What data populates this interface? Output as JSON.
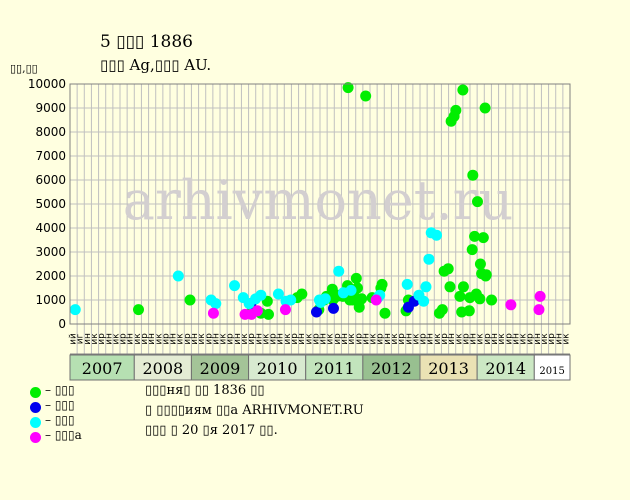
{
  "title": "5 ▯▯▯ 1886",
  "subtitle": "▯▯▯ Ag,▯▯▯ AU.",
  "y_unit": "▯▯,▯▯",
  "watermark": "arhivmonet.ru",
  "legend": [
    {
      "label": "– ▯▯▯",
      "color": "#00ee00"
    },
    {
      "label": "– ▯▯▯",
      "color": "#0000ee"
    },
    {
      "label": "– ▯▯▯",
      "color": "#00ffff"
    },
    {
      "label": "– ▯▯▯a",
      "color": "#ff00ff"
    }
  ],
  "notes": [
    "▯▯▯ня▯ ▯▯ 1836 ▯▯",
    "▯ ▯▯▯▯иям ▯▯а ARHIVMONET.RU",
    "▯▯▯ ▯ 20 ▯я 2017 ▯▯."
  ],
  "chart_data": {
    "type": "scatter",
    "title": "5 ▯▯▯ 1886",
    "ylabel": "▯▯,▯▯",
    "ylim": [
      0,
      10000
    ],
    "yticks": [
      0,
      1000,
      2000,
      3000,
      4000,
      5000,
      6000,
      7000,
      8000,
      9000,
      10000
    ],
    "grid": true,
    "legend_position": "bottom-left",
    "month_slots": 70,
    "month_labels": [
      "ий",
      "иг",
      "ин",
      "ик",
      "ир",
      "ин",
      "ик",
      "ир",
      "ин",
      "ик",
      "ир",
      "ин",
      "ик",
      "ир",
      "ин",
      "ик",
      "ир",
      "ин",
      "ик",
      "ир",
      "ин",
      "ик",
      "ир",
      "ин",
      "ик",
      "ир",
      "ин",
      "ик",
      "ир",
      "ин",
      "ик",
      "ир",
      "ин",
      "ик",
      "ир",
      "ин",
      "ик",
      "ир",
      "ин",
      "ик",
      "ир",
      "ин",
      "ик",
      "ир",
      "ин",
      "ик",
      "ир",
      "ин",
      "ик",
      "ир",
      "ин",
      "ик",
      "ир",
      "ин",
      "ик",
      "ир",
      "ин",
      "ик",
      "ир",
      "ин",
      "ик",
      "ир",
      "ин",
      "ик",
      "ир",
      "ин",
      "ик",
      "ир",
      "ин",
      "ик"
    ],
    "years": [
      {
        "label": "2007",
        "start": 0,
        "end": 9,
        "color": "#b6e0b2"
      },
      {
        "label": "2008",
        "start": 9,
        "end": 17,
        "color": "#e4ecd4"
      },
      {
        "label": "2009",
        "start": 17,
        "end": 25,
        "color": "#a4c498"
      },
      {
        "label": "2010",
        "start": 25,
        "end": 33,
        "color": "#d8ead0"
      },
      {
        "label": "2011",
        "start": 33,
        "end": 41,
        "color": "#c2e4bc"
      },
      {
        "label": "2012",
        "start": 41,
        "end": 49,
        "color": "#98c090"
      },
      {
        "label": "2013",
        "start": 49,
        "end": 57,
        "color": "#eae2b4"
      },
      {
        "label": "2014",
        "start": 57,
        "end": 65,
        "color": "#cce8c4"
      },
      {
        "label": "2015",
        "start": 65,
        "end": 70,
        "color": "#ffffff"
      }
    ],
    "series": [
      {
        "color": "#00ee00",
        "points": [
          [
            11.7,
            600
          ],
          [
            20.5,
            1000
          ],
          [
            31.1,
            550
          ],
          [
            32.6,
            450
          ],
          [
            33.7,
            950
          ],
          [
            33.9,
            400
          ],
          [
            38.8,
            1100
          ],
          [
            39.6,
            1250
          ],
          [
            42.5,
            600
          ],
          [
            43.4,
            1000
          ],
          [
            43.8,
            1150
          ],
          [
            44.8,
            1450
          ],
          [
            44.9,
            1000
          ],
          [
            45.6,
            1150
          ],
          [
            45.7,
            1200
          ],
          [
            46.6,
            1150
          ],
          [
            47.2,
            1350
          ],
          [
            47.4,
            1600
          ],
          [
            47.5,
            9850
          ],
          [
            47.7,
            1500
          ],
          [
            47.8,
            1000
          ],
          [
            47.9,
            1250
          ],
          [
            48.3,
            1000
          ],
          [
            48.5,
            1350
          ],
          [
            48.9,
            1900
          ],
          [
            49.1,
            1500
          ],
          [
            49.4,
            700
          ],
          [
            49.8,
            1050
          ],
          [
            50.5,
            9500
          ],
          [
            51.6,
            1100
          ],
          [
            53.1,
            1500
          ],
          [
            53.3,
            1650
          ],
          [
            53.8,
            450
          ],
          [
            57.4,
            550
          ],
          [
            57.8,
            1000
          ],
          [
            63.1,
            450
          ],
          [
            63.6,
            600
          ],
          [
            63.9,
            2200
          ],
          [
            64.6,
            2300
          ],
          [
            64.9,
            1550
          ],
          [
            65.1,
            8450
          ],
          [
            65.6,
            8650
          ],
          [
            65.9,
            8900
          ],
          [
            66.6,
            1150
          ],
          [
            66.9,
            500
          ],
          [
            67.1,
            9750
          ],
          [
            67.2,
            1550
          ],
          [
            68.2,
            550
          ],
          [
            68.3,
            1100
          ],
          [
            68.7,
            3100
          ],
          [
            68.8,
            6200
          ],
          [
            69.1,
            3650
          ],
          [
            69.4,
            1250
          ],
          [
            69.6,
            5100
          ],
          [
            70.0,
            1050
          ],
          [
            70.1,
            2500
          ],
          [
            70.3,
            2100
          ],
          [
            70.6,
            3600
          ],
          [
            70.9,
            9000
          ],
          [
            71.0,
            2000
          ],
          [
            71.1,
            2050
          ],
          [
            72.0,
            1000
          ]
        ]
      },
      {
        "color": "#0000ee",
        "points": [
          [
            30.9,
            850
          ],
          [
            42.1,
            500
          ],
          [
            45.0,
            650
          ],
          [
            57.8,
            700
          ],
          [
            58.8,
            950
          ]
        ]
      },
      {
        "color": "#00ffff",
        "points": [
          [
            0.9,
            600
          ],
          [
            18.5,
            2000
          ],
          [
            24.1,
            1000
          ],
          [
            24.9,
            850
          ],
          [
            28.1,
            1600
          ],
          [
            29.6,
            1100
          ],
          [
            30.6,
            850
          ],
          [
            31.7,
            1050
          ],
          [
            32.6,
            1200
          ],
          [
            35.6,
            1250
          ],
          [
            36.9,
            950
          ],
          [
            37.7,
            1000
          ],
          [
            42.6,
            1000
          ],
          [
            42.8,
            900
          ],
          [
            43.6,
            1050
          ],
          [
            45.9,
            2200
          ],
          [
            46.7,
            1300
          ],
          [
            48.0,
            1400
          ],
          [
            52.6,
            1100
          ],
          [
            52.9,
            1200
          ],
          [
            57.6,
            1650
          ],
          [
            59.6,
            1200
          ],
          [
            60.4,
            950
          ],
          [
            60.8,
            1550
          ],
          [
            61.3,
            2700
          ],
          [
            61.7,
            3800
          ],
          [
            62.6,
            3700
          ]
        ]
      },
      {
        "color": "#ff00ff",
        "points": [
          [
            24.5,
            450
          ],
          [
            29.9,
            400
          ],
          [
            31.0,
            400
          ],
          [
            32.0,
            550
          ],
          [
            36.8,
            600
          ],
          [
            52.3,
            1000
          ],
          [
            75.3,
            800
          ],
          [
            80.1,
            600
          ],
          [
            80.3,
            1150
          ]
        ]
      }
    ]
  }
}
